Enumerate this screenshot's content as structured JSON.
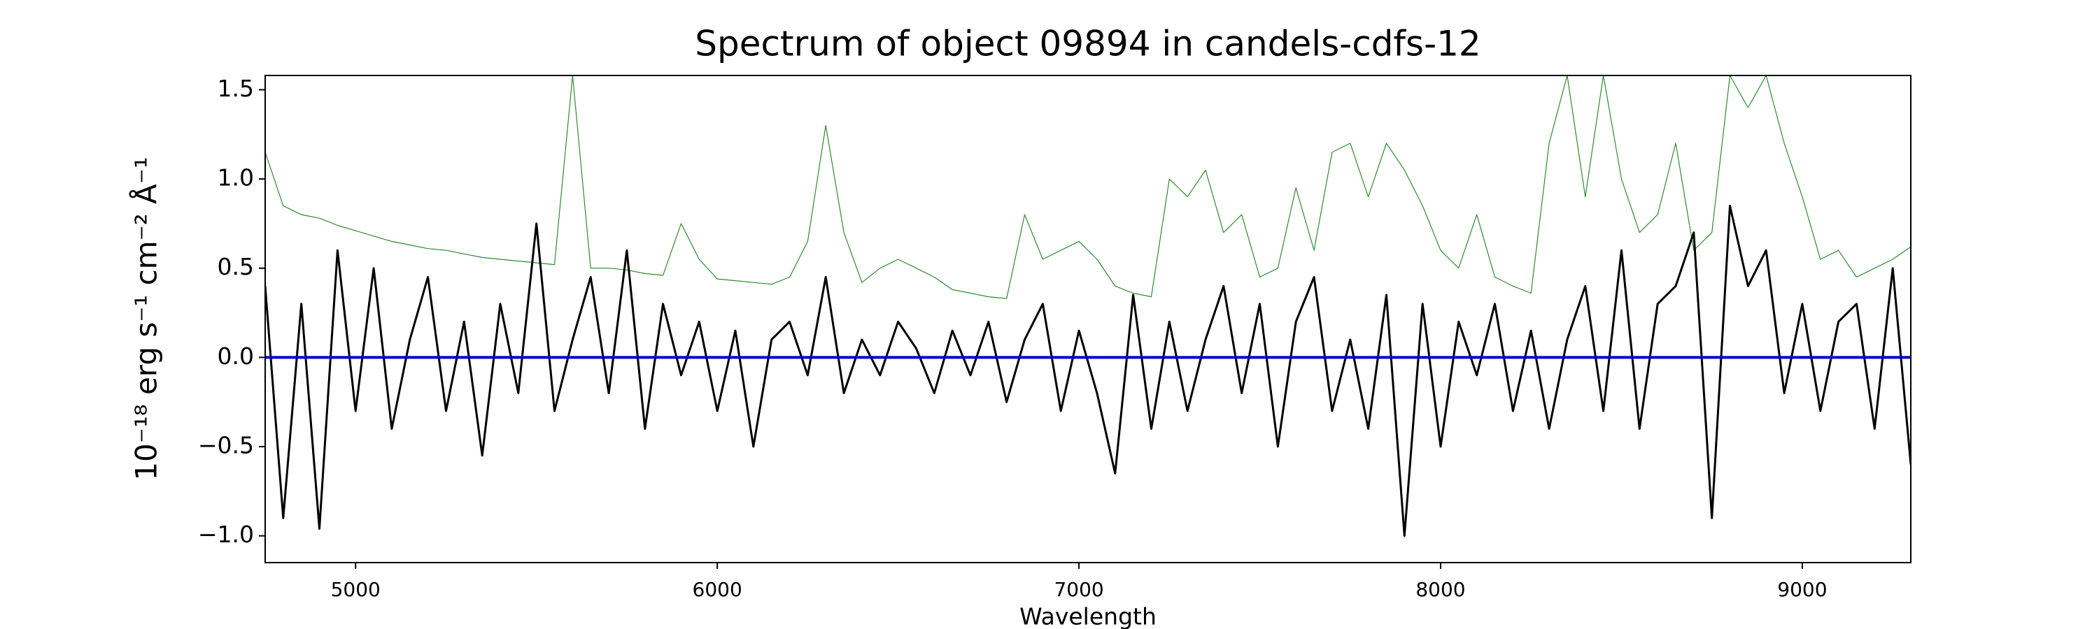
{
  "chart_data": {
    "type": "line",
    "title": "Spectrum of object 09894 in candels-cdfs-12",
    "x_label": "Wavelength",
    "y_label": "10⁻¹⁸ erg s⁻¹ cm⁻² Å⁻¹",
    "x": [
      4750,
      4800,
      4850,
      4900,
      4950,
      5000,
      5050,
      5100,
      5150,
      5200,
      5250,
      5300,
      5350,
      5400,
      5450,
      5500,
      5550,
      5600,
      5650,
      5700,
      5750,
      5800,
      5850,
      5900,
      5950,
      6000,
      6050,
      6100,
      6150,
      6200,
      6250,
      6300,
      6350,
      6400,
      6450,
      6500,
      6550,
      6600,
      6650,
      6700,
      6750,
      6800,
      6850,
      6900,
      6950,
      7000,
      7050,
      7100,
      7150,
      7200,
      7250,
      7300,
      7350,
      7400,
      7450,
      7500,
      7550,
      7600,
      7650,
      7700,
      7750,
      7800,
      7850,
      7900,
      7950,
      8000,
      8050,
      8100,
      8150,
      8200,
      8250,
      8300,
      8350,
      8400,
      8450,
      8500,
      8550,
      8600,
      8650,
      8700,
      8750,
      8800,
      8850,
      8900,
      8950,
      9000,
      9050,
      9100,
      9150,
      9200,
      9250,
      9300
    ],
    "series": [
      {
        "color": "#2e8b2e",
        "width": 1.2,
        "values": [
          1.15,
          0.85,
          0.8,
          0.78,
          0.74,
          0.71,
          0.68,
          0.65,
          0.63,
          0.61,
          0.6,
          0.58,
          0.56,
          0.55,
          0.54,
          0.53,
          0.52,
          1.58,
          0.5,
          0.5,
          0.49,
          0.47,
          0.46,
          0.75,
          0.55,
          0.44,
          0.43,
          0.42,
          0.41,
          0.45,
          0.65,
          1.3,
          0.7,
          0.42,
          0.5,
          0.55,
          0.5,
          0.45,
          0.38,
          0.36,
          0.34,
          0.33,
          0.8,
          0.55,
          0.6,
          0.65,
          0.55,
          0.4,
          0.36,
          0.34,
          1.0,
          0.9,
          1.05,
          0.7,
          0.8,
          0.45,
          0.5,
          0.95,
          0.6,
          1.15,
          1.2,
          0.9,
          1.2,
          1.05,
          0.85,
          0.6,
          0.5,
          0.8,
          0.45,
          0.4,
          0.36,
          1.2,
          1.58,
          0.9,
          1.58,
          1.0,
          0.7,
          0.8,
          1.2,
          0.6,
          0.7,
          1.58,
          1.4,
          1.58,
          1.2,
          0.9,
          0.55,
          0.6,
          0.45,
          0.5,
          0.55,
          0.62
        ]
      },
      {
        "color": "#000000",
        "width": 3,
        "values": [
          0.4,
          -0.9,
          0.3,
          -0.96,
          0.6,
          -0.3,
          0.5,
          -0.4,
          0.1,
          0.45,
          -0.3,
          0.2,
          -0.55,
          0.3,
          -0.2,
          0.75,
          -0.3,
          0.1,
          0.45,
          -0.2,
          0.6,
          -0.4,
          0.3,
          -0.1,
          0.2,
          -0.3,
          0.15,
          -0.5,
          0.1,
          0.2,
          -0.1,
          0.45,
          -0.2,
          0.1,
          -0.1,
          0.2,
          0.05,
          -0.2,
          0.15,
          -0.1,
          0.2,
          -0.25,
          0.1,
          0.3,
          -0.3,
          0.15,
          -0.2,
          -0.65,
          0.35,
          -0.4,
          0.2,
          -0.3,
          0.1,
          0.4,
          -0.2,
          0.3,
          -0.5,
          0.2,
          0.45,
          -0.3,
          0.1,
          -0.4,
          0.35,
          -1.0,
          0.3,
          -0.5,
          0.2,
          -0.1,
          0.3,
          -0.3,
          0.15,
          -0.4,
          0.1,
          0.4,
          -0.3,
          0.6,
          -0.4,
          0.3,
          0.4,
          0.7,
          -0.9,
          0.85,
          0.4,
          0.6,
          -0.2,
          0.3,
          -0.3,
          0.2,
          0.3,
          -0.4,
          0.5,
          -0.6
        ]
      },
      {
        "color": "#0000cc",
        "width": 4,
        "values": [
          0,
          0,
          0,
          0,
          0,
          0,
          0,
          0,
          0,
          0,
          0,
          0,
          0,
          0,
          0,
          0,
          0,
          0,
          0,
          0,
          0,
          0,
          0,
          0,
          0,
          0,
          0,
          0,
          0,
          0,
          0,
          0,
          0,
          0,
          0,
          0,
          0,
          0,
          0,
          0,
          0,
          0,
          0,
          0,
          0,
          0,
          0,
          0,
          0,
          0,
          0,
          0,
          0,
          0,
          0,
          0,
          0,
          0,
          0,
          0,
          0,
          0,
          0,
          0,
          0,
          0,
          0,
          0,
          0,
          0,
          0,
          0,
          0,
          0,
          0,
          0,
          0,
          0,
          0,
          0,
          0,
          0,
          0,
          0,
          0,
          0,
          0,
          0,
          0,
          0,
          0,
          0
        ]
      }
    ],
    "xlim": [
      4750,
      9300
    ],
    "ylim": [
      -1.15,
      1.58
    ],
    "xticks": [
      5000,
      6000,
      7000,
      8000,
      9000
    ],
    "yticks": [
      {
        "value": -1,
        "label": "−1.0"
      },
      {
        "value": -0.5,
        "label": "−0.5"
      },
      {
        "value": 0,
        "label": "0.0"
      },
      {
        "value": 0.5,
        "label": "0.5"
      },
      {
        "value": 1,
        "label": "1.0"
      },
      {
        "value": 1.5,
        "label": "1.5"
      }
    ]
  }
}
